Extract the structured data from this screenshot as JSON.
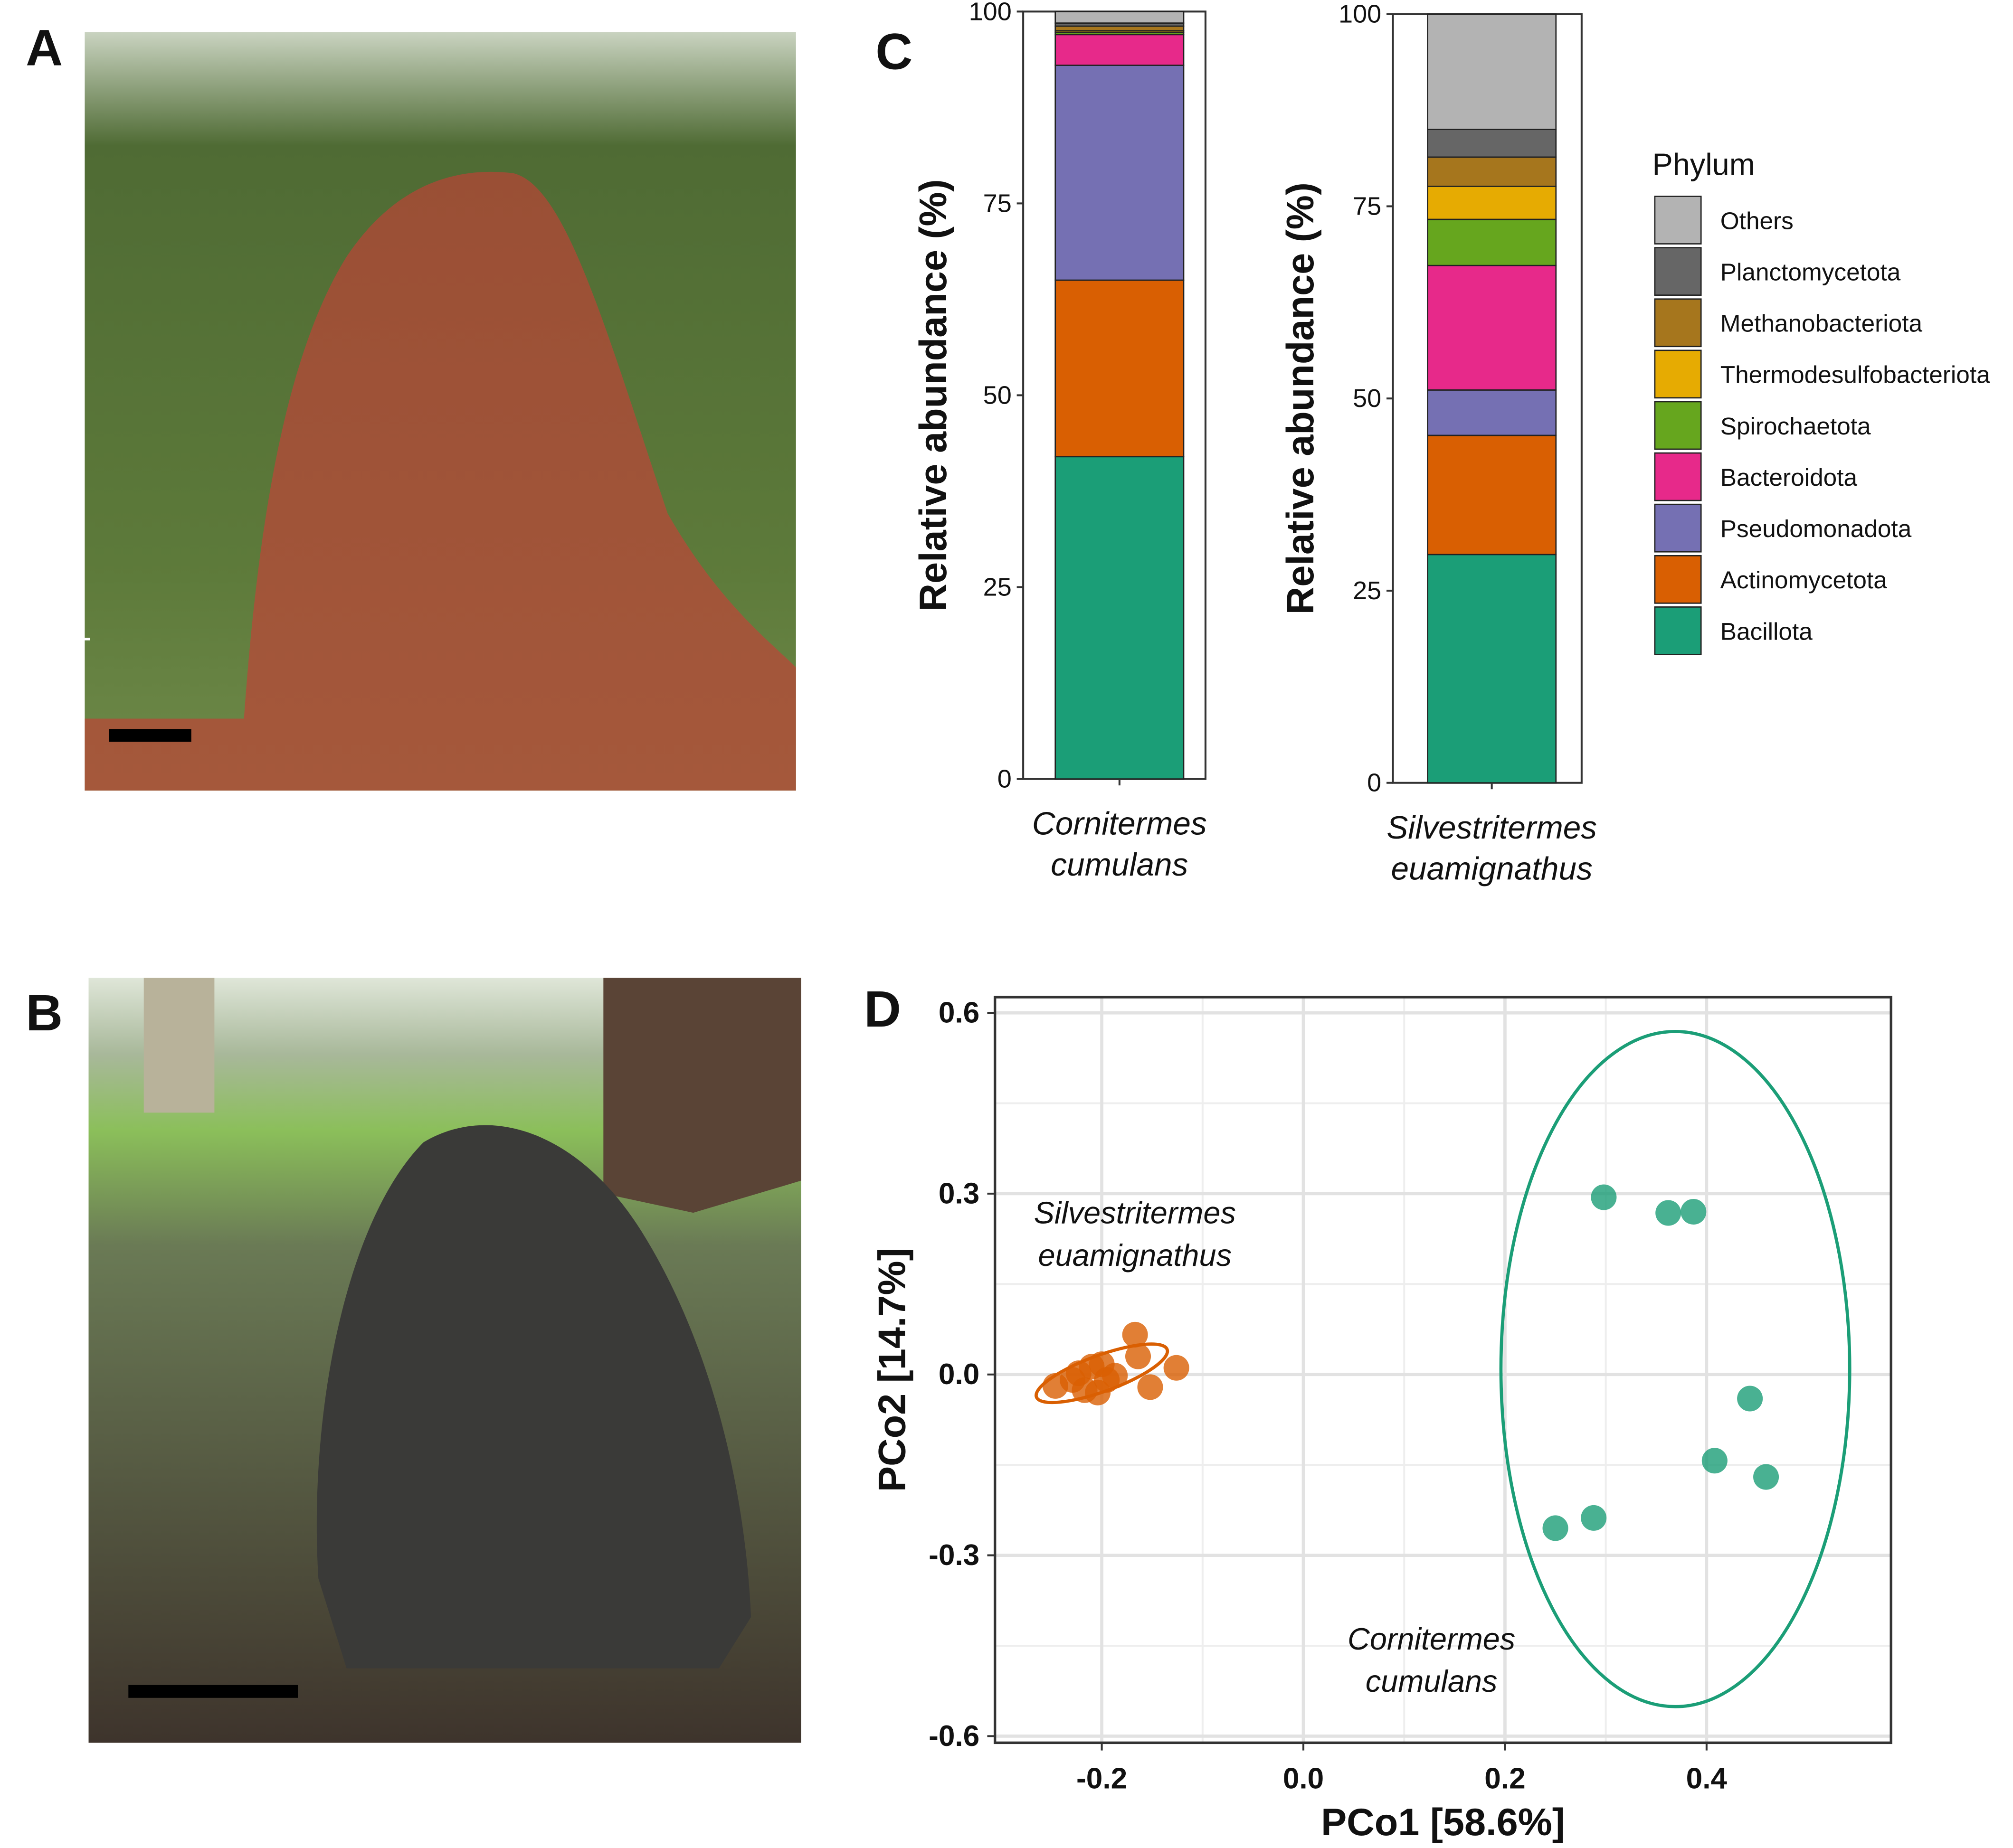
{
  "panel_labels": [
    "A",
    "B",
    "C",
    "D"
  ],
  "chart_data": [
    {
      "type": "bar",
      "stacked": true,
      "y_label": "Relative abundance (%)",
      "categories": [
        [
          "Cornitermes",
          "cumulans"
        ],
        [
          "Silvestritermes",
          "euamignathus"
        ]
      ],
      "ylim": [
        0,
        100
      ],
      "yticks": [
        0,
        25,
        50,
        75,
        100
      ],
      "legend_title": "Phylum",
      "series": [
        {
          "name": "Bacillota",
          "color": "#1b9e77",
          "values": [
            42.0,
            29.7
          ]
        },
        {
          "name": "Actinomycetota",
          "color": "#d95f02",
          "values": [
            23.0,
            15.5
          ]
        },
        {
          "name": "Pseudomonadota",
          "color": "#7570b3",
          "values": [
            28.0,
            5.9
          ]
        },
        {
          "name": "Bacteroidota",
          "color": "#e7298a",
          "values": [
            4.0,
            16.2
          ]
        },
        {
          "name": "Spirochaetota",
          "color": "#66a61e",
          "values": [
            0.3,
            6.0
          ]
        },
        {
          "name": "Thermodesulfobacteriota",
          "color": "#e6ab02",
          "values": [
            0.2,
            4.3
          ]
        },
        {
          "name": "Methanobacteriota",
          "color": "#a6761d",
          "values": [
            0.6,
            3.8
          ]
        },
        {
          "name": "Planctomycetota",
          "color": "#666666",
          "values": [
            0.4,
            3.6
          ]
        },
        {
          "name": "Others",
          "color": "#b3b3b3",
          "values": [
            1.5,
            15.0
          ]
        }
      ]
    },
    {
      "type": "scatter",
      "x_label": "PCo1 [58.6%]",
      "y_label": "PCo2 [14.7%]",
      "xlim": [
        -0.306,
        0.583
      ],
      "ylim": [
        -0.611,
        0.626
      ],
      "xticks": [
        -0.2,
        {
          "value": 0,
          "label": "0.0"
        },
        0.2,
        0.4
      ],
      "yticks": [
        -0.6,
        -0.3,
        {
          "value": 0,
          "label": "0.0"
        },
        0.3,
        0.6
      ],
      "grid": true,
      "annotations": [
        [
          "Silvestritermes",
          "euamignathus"
        ],
        [
          "Cornitermes",
          "cumulans"
        ]
      ],
      "series": [
        {
          "color": "#d95f02",
          "x": [
            -0.246,
            -0.229,
            -0.217,
            -0.21,
            -0.2,
            -0.195,
            -0.187,
            -0.167,
            -0.164,
            -0.152,
            -0.126,
            -0.223,
            -0.204
          ],
          "y": [
            -0.019,
            -0.009,
            -0.026,
            0.013,
            0.017,
            -0.009,
            -0.002,
            0.066,
            0.03,
            -0.021,
            0.011,
            0.002,
            -0.03
          ],
          "ellipse": {
            "cx": -0.2,
            "cy": 0.002,
            "rx": 0.069,
            "ry": 0.03,
            "angle": -20
          }
        },
        {
          "color": "#1b9e77",
          "x": [
            0.298,
            0.362,
            0.387,
            0.443,
            0.408,
            0.459,
            0.288,
            0.25
          ],
          "y": [
            0.294,
            0.268,
            0.27,
            -0.04,
            -0.143,
            -0.17,
            -0.238,
            -0.255
          ],
          "ellipse": {
            "cx": 0.369,
            "cy": 0.009,
            "rx": 0.173,
            "ry": 0.56,
            "angle": 0
          }
        }
      ]
    }
  ]
}
